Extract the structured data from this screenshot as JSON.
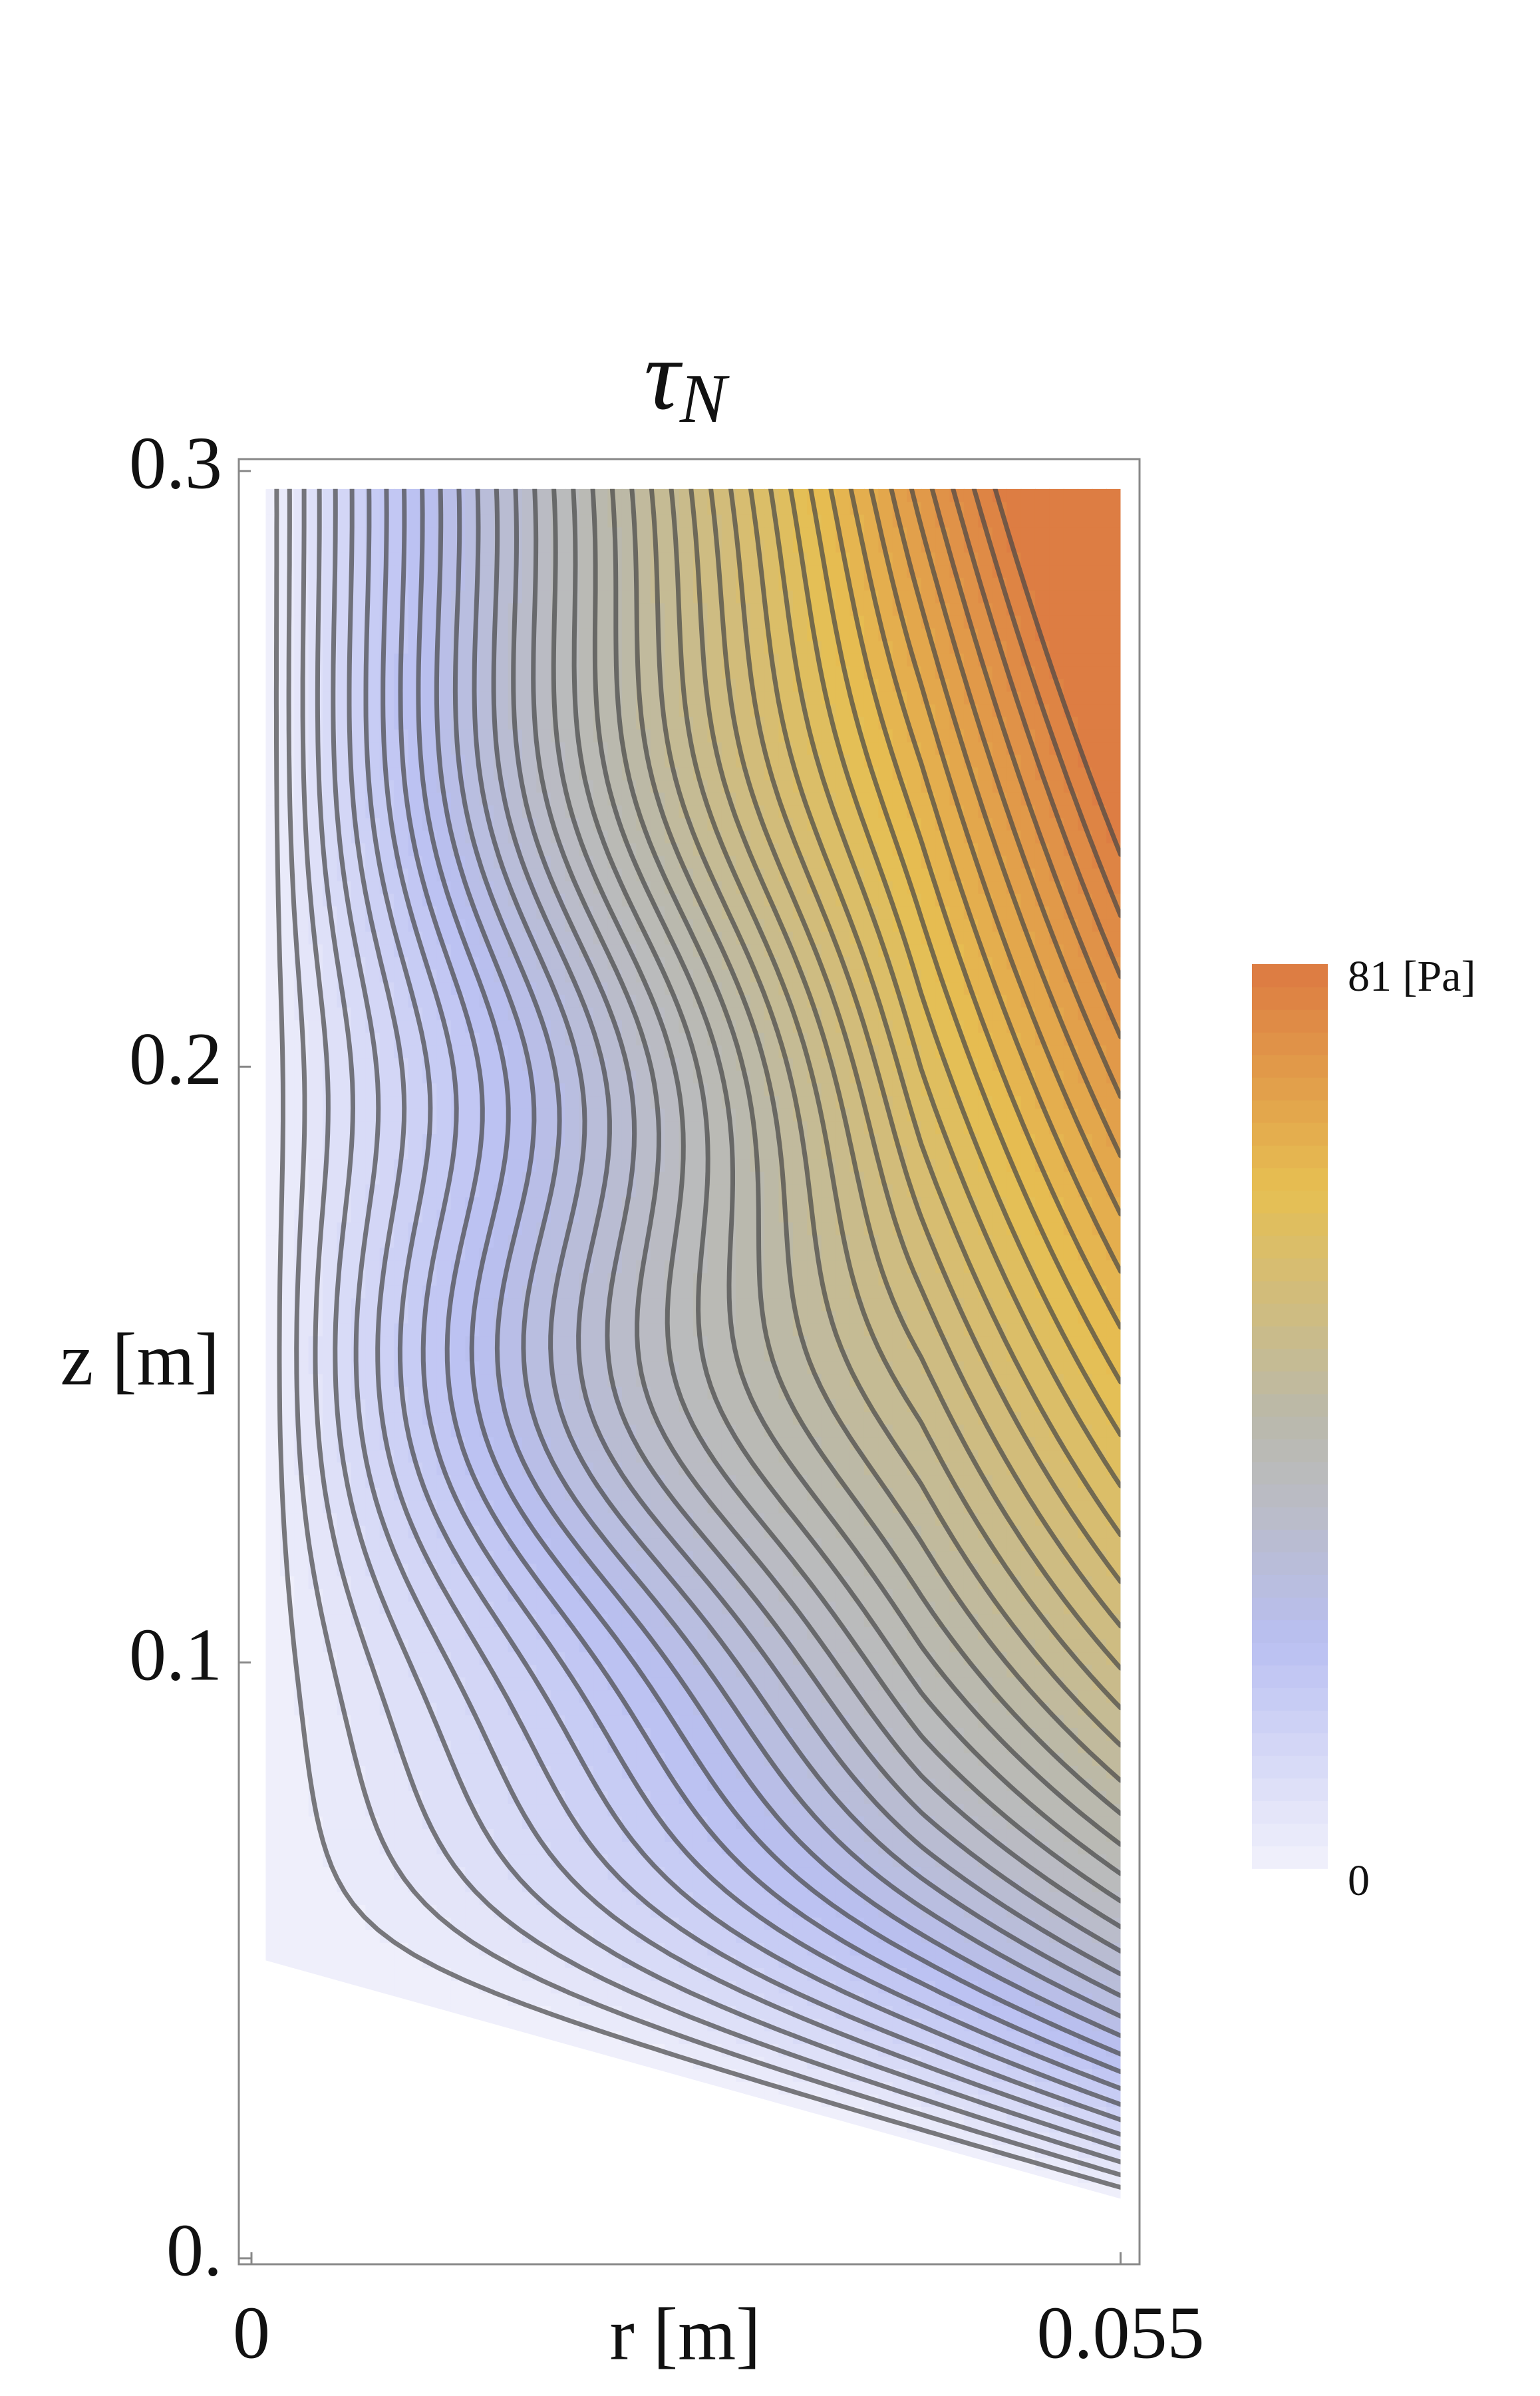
{
  "chart_data": {
    "type": "contour",
    "title": {
      "symbol": "τ",
      "subscript": "N"
    },
    "x_label": "r [m]",
    "y_label": "z [m]",
    "xlim": [
      -0.0008,
      0.0562
    ],
    "xticks": [
      0,
      0.055
    ],
    "ylim": [
      -0.001,
      0.302
    ],
    "yticks": [
      {
        "value": 0,
        "label": "0."
      },
      0.1,
      0.2,
      0.3
    ],
    "colorbar": {
      "clim": [
        0,
        81
      ],
      "ticks": [
        0,
        {
          "value": 81,
          "label": "81 [Pa]"
        }
      ],
      "colors": [
        "#f2f2fb",
        "#b9bff2",
        "#bab9aa",
        "#e6bf52",
        "#dc7a42"
      ]
    }
  }
}
